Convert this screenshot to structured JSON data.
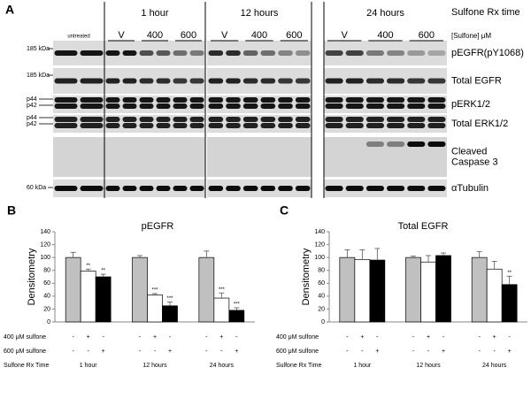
{
  "panel_a": {
    "label": "A",
    "untreated": "untreated",
    "time_header": "Sulfone Rx time",
    "times": [
      "1 hour",
      "12 hours",
      "24 hours"
    ],
    "doses": [
      "V",
      "400",
      "600"
    ],
    "dose_header": "[Sulfone] μM",
    "rows": [
      {
        "markers": [
          "185 kDa"
        ],
        "label": [
          "pEGFR(pY1068)"
        ]
      },
      {
        "markers": [
          "185 kDa"
        ],
        "label": [
          "Total EGFR"
        ]
      },
      {
        "markers": [
          "p44",
          "p42"
        ],
        "label": [
          "pERK1/2"
        ]
      },
      {
        "markers": [
          "p44",
          "p42"
        ],
        "label": [
          "Total ERK1/2"
        ]
      },
      {
        "markers": [],
        "label": [
          "Cleaved",
          "Caspase 3"
        ]
      },
      {
        "markers": [
          "60 kDa"
        ],
        "label": [
          "αTubulin"
        ]
      }
    ]
  },
  "chart_data": [
    {
      "type": "bar",
      "panel": "B",
      "title": "pEGFR",
      "y_label": "Densitometry",
      "x_label": "Sulfone Rx Time",
      "ylim": [
        0,
        140
      ],
      "yticks": [
        0,
        20,
        40,
        60,
        80,
        100,
        120,
        140
      ],
      "categories": [
        "1 hour",
        "12 hours",
        "24 hours"
      ],
      "treatments": [
        {
          "label": "400 μM sulfone",
          "signs": [
            "-",
            "+",
            "-"
          ]
        },
        {
          "label": "600 μM sulfone",
          "signs": [
            "-",
            "-",
            "+"
          ]
        }
      ],
      "series": [
        {
          "color": "#c0c0c0",
          "values": [
            100,
            100,
            100
          ],
          "errors": [
            8,
            3,
            10
          ]
        },
        {
          "color": "#ffffff",
          "values": [
            79,
            42,
            37
          ],
          "errors": [
            3,
            2,
            8
          ],
          "significance": [
            "**",
            "***",
            "***"
          ]
        },
        {
          "color": "#000000",
          "values": [
            70,
            25,
            18
          ],
          "errors": [
            4,
            6,
            4
          ],
          "significance": [
            "**",
            "***",
            "***"
          ]
        }
      ]
    },
    {
      "type": "bar",
      "panel": "C",
      "title": "Total EGFR",
      "y_label": "Densitometry",
      "x_label": "Sulfone Rx Time",
      "ylim": [
        0,
        140
      ],
      "yticks": [
        0,
        20,
        40,
        60,
        80,
        100,
        120,
        140
      ],
      "categories": [
        "1 hour",
        "12 hours",
        "24 hours"
      ],
      "treatments": [
        {
          "label": "400 μM sulfone",
          "signs": [
            "-",
            "+",
            "-"
          ]
        },
        {
          "label": "600 μM sulfone",
          "signs": [
            "-",
            "-",
            "+"
          ]
        }
      ],
      "series": [
        {
          "color": "#c0c0c0",
          "values": [
            100,
            100,
            100
          ],
          "errors": [
            12,
            2,
            9
          ]
        },
        {
          "color": "#ffffff",
          "values": [
            97,
            93,
            82
          ],
          "errors": [
            15,
            10,
            12
          ]
        },
        {
          "color": "#000000",
          "values": [
            96,
            103,
            58
          ],
          "errors": [
            18,
            4,
            13
          ],
          "significance": [
            null,
            null,
            "**"
          ]
        }
      ]
    }
  ]
}
